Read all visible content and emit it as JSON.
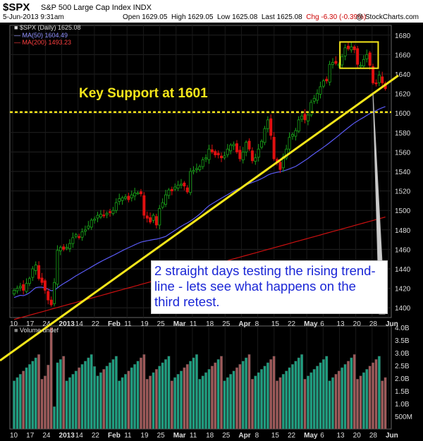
{
  "header": {
    "symbol": "$SPX",
    "name": "S&P 500 Large Cap Index  INDX",
    "date": "5-Jun-2013 9:31am",
    "open": "Open 1629.05",
    "high": "High 1629.05",
    "low": "Low 1625.08",
    "last": "Last 1625.08",
    "chg": "Chg -6.30 (-0.39%)",
    "watermark": "@ StockCharts.com"
  },
  "legend": {
    "price": "$SPX (Daily) 1625.08",
    "ma50": "MA(50) 1604.49",
    "ma200": "MA(200) 1493.23",
    "volume": "Volume undef"
  },
  "annotations": {
    "support_label": "Key Support at 1601",
    "callout": "2 straight days testing the rising trend-line - lets see what happens on the third retest."
  },
  "colors": {
    "up": "#1aa51a",
    "down": "#e01010",
    "ma50": "#5a5af5",
    "ma200": "#cc1010",
    "annotation": "#f5e61a",
    "callout_text": "#1a26d6",
    "vol_up": "#1f9e80",
    "vol_down": "#9e5a5a"
  },
  "chart_data": {
    "type": "candlestick",
    "ylim": [
      1390,
      1690
    ],
    "y_ticks": [
      1400,
      1420,
      1440,
      1460,
      1480,
      1500,
      1520,
      1540,
      1560,
      1580,
      1600,
      1620,
      1640,
      1660,
      1680
    ],
    "x_labels": [
      "10",
      "17",
      "24",
      "2013",
      "14",
      "22",
      "Feb",
      "11",
      "19",
      "25",
      "Mar",
      "11",
      "18",
      "25",
      "Apr",
      "8",
      "15",
      "22",
      "May",
      "6",
      "13",
      "20",
      "28",
      "Jun"
    ],
    "support_level": 1601,
    "closes": [
      1418,
      1420,
      1422,
      1418,
      1425,
      1430,
      1440,
      1444,
      1430,
      1426,
      1418,
      1408,
      1403,
      1426,
      1459,
      1462,
      1460,
      1462,
      1466,
      1472,
      1475,
      1473,
      1478,
      1480,
      1484,
      1490,
      1491,
      1495,
      1496,
      1495,
      1497,
      1498,
      1500,
      1508,
      1512,
      1513,
      1514,
      1511,
      1516,
      1518,
      1518,
      1517,
      1495,
      1492,
      1488,
      1495,
      1485,
      1502,
      1508,
      1516,
      1521,
      1520,
      1524,
      1526,
      1527,
      1525,
      1519,
      1540,
      1541,
      1543,
      1545,
      1552,
      1554,
      1563,
      1560,
      1557,
      1557,
      1554,
      1556,
      1563,
      1567,
      1568,
      1560,
      1553,
      1560,
      1570,
      1563,
      1551,
      1554,
      1563,
      1571,
      1584,
      1593,
      1577,
      1553,
      1549,
      1542,
      1555,
      1563,
      1575,
      1578,
      1582,
      1593,
      1597,
      1593,
      1598,
      1611,
      1615,
      1620,
      1627,
      1633,
      1633,
      1650,
      1652,
      1651,
      1650,
      1658,
      1667,
      1666,
      1668,
      1665,
      1650,
      1649,
      1655,
      1660,
      1649,
      1631,
      1630,
      1639,
      1631,
      1625
    ],
    "volume_ylim": [
      0,
      4
    ],
    "volume_ticks": [
      "500M",
      "1.0B",
      "1.5B",
      "2.0B",
      "2.5B",
      "3.0B",
      "3.5B",
      "4.0B"
    ]
  }
}
